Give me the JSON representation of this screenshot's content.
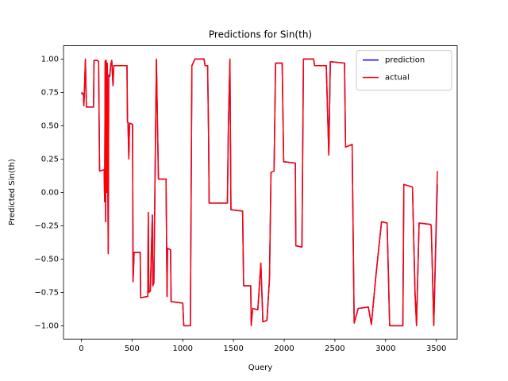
{
  "chart_data": {
    "type": "line",
    "title": "Predictions for Sin(th)",
    "x_label": "Query",
    "y_label": "Predicted Sin(th)",
    "xlim": [
      -176,
      3706
    ],
    "ylim": [
      -1.1,
      1.1
    ],
    "xticks": [
      0,
      500,
      1000,
      1500,
      2000,
      2500,
      3000,
      3500
    ],
    "yticks": [
      {
        "value": -1,
        "label": "−1.00"
      },
      {
        "value": -0.75,
        "label": "−0.75"
      },
      {
        "value": -0.5,
        "label": "−0.50"
      },
      {
        "value": -0.25,
        "label": "−0.25"
      },
      {
        "value": 0,
        "label": "0.00"
      },
      0.25,
      {
        "value": 0.5,
        "label": "0.50"
      },
      0.75,
      {
        "value": 1,
        "label": "1.00"
      }
    ],
    "legend": "upper right",
    "x": [
      0,
      20,
      25,
      40,
      50,
      120,
      125,
      160,
      170,
      175,
      180,
      225,
      230,
      235,
      240,
      245,
      250,
      255,
      265,
      270,
      280,
      290,
      300,
      312,
      320,
      330,
      450,
      455,
      460,
      468,
      475,
      505,
      510,
      520,
      580,
      585,
      655,
      660,
      665,
      680,
      700,
      705,
      715,
      740,
      760,
      770,
      835,
      845,
      850,
      880,
      885,
      895,
      1000,
      1010,
      1075,
      1090,
      1120,
      1210,
      1220,
      1245,
      1255,
      1260,
      1440,
      1450,
      1465,
      1475,
      1590,
      1600,
      1670,
      1675,
      1690,
      1740,
      1770,
      1790,
      1830,
      1855,
      1870,
      1900,
      1915,
      1980,
      1995,
      2110,
      2115,
      2175,
      2190,
      2290,
      2300,
      2415,
      2440,
      2455,
      2595,
      2605,
      2670,
      2690,
      2730,
      2830,
      2860,
      2905,
      2960,
      3015,
      3040,
      3170,
      3180,
      3265,
      3290,
      3305,
      3330,
      3445,
      3450,
      3475,
      3510
    ],
    "series": [
      {
        "name": "prediction",
        "color": "#0000ff",
        "values": [
          0.74,
          0.74,
          0.65,
          0.99,
          0.64,
          0.64,
          0.99,
          0.99,
          0.98,
          0.55,
          0.16,
          0.17,
          -0.07,
          0.98,
          -0.22,
          0.99,
          0.0,
          0.97,
          -0.45,
          0.88,
          0.87,
          0.96,
          0.99,
          0.8,
          0.95,
          0.95,
          0.95,
          0.53,
          0.52,
          0.26,
          0.52,
          0.51,
          -0.67,
          -0.45,
          -0.45,
          -0.79,
          -0.78,
          -0.15,
          -0.75,
          -0.74,
          -0.17,
          -0.7,
          -0.68,
          0.99,
          0.1,
          0.1,
          0.1,
          -0.78,
          -0.42,
          -0.43,
          -0.82,
          -0.82,
          -0.83,
          -1.0,
          -1.0,
          0.95,
          1.0,
          1.0,
          0.95,
          0.95,
          0.4,
          -0.08,
          -0.08,
          0.5,
          0.99,
          -0.13,
          -0.14,
          -0.7,
          -0.7,
          -0.99,
          -0.87,
          -0.88,
          -0.53,
          -0.97,
          -0.96,
          -0.65,
          0.15,
          0.16,
          0.97,
          0.97,
          0.23,
          0.22,
          -0.4,
          -0.41,
          1.0,
          1.0,
          0.95,
          0.95,
          0.28,
          0.98,
          0.97,
          0.34,
          0.36,
          -0.98,
          -0.87,
          -0.86,
          -0.99,
          -0.62,
          -0.22,
          -0.23,
          -1.0,
          -1.0,
          0.06,
          0.04,
          -0.75,
          -1.0,
          -0.23,
          -0.24,
          -0.25,
          -0.99,
          0.06
        ]
      },
      {
        "name": "actual",
        "color": "#ff0000",
        "values": [
          0.75,
          0.74,
          0.65,
          1.0,
          0.64,
          0.64,
          0.99,
          0.99,
          0.98,
          0.55,
          0.16,
          0.17,
          -0.07,
          0.99,
          -0.22,
          0.99,
          0.0,
          0.97,
          -0.46,
          0.88,
          0.87,
          0.96,
          0.99,
          0.8,
          0.95,
          0.95,
          0.95,
          0.53,
          0.52,
          0.25,
          0.52,
          0.51,
          -0.67,
          -0.45,
          -0.45,
          -0.79,
          -0.78,
          -0.15,
          -0.75,
          -0.74,
          -0.17,
          -0.7,
          -0.68,
          1.0,
          0.1,
          0.1,
          0.1,
          -0.78,
          -0.42,
          -0.43,
          -0.82,
          -0.82,
          -0.83,
          -1.0,
          -1.0,
          0.95,
          1.0,
          1.0,
          0.95,
          0.95,
          0.4,
          -0.08,
          -0.08,
          0.5,
          1.0,
          -0.13,
          -0.14,
          -0.7,
          -0.7,
          -1.0,
          -0.87,
          -0.88,
          -0.53,
          -0.97,
          -0.96,
          -0.65,
          0.15,
          0.16,
          0.97,
          0.97,
          0.23,
          0.22,
          -0.4,
          -0.41,
          1.0,
          1.0,
          0.95,
          0.95,
          0.28,
          0.98,
          0.97,
          0.34,
          0.36,
          -0.98,
          -0.87,
          -0.86,
          -0.99,
          -0.62,
          -0.22,
          -0.23,
          -1.0,
          -1.0,
          0.06,
          0.04,
          -0.75,
          -1.0,
          -0.23,
          -0.24,
          -0.25,
          -1.0,
          0.16
        ]
      }
    ]
  }
}
